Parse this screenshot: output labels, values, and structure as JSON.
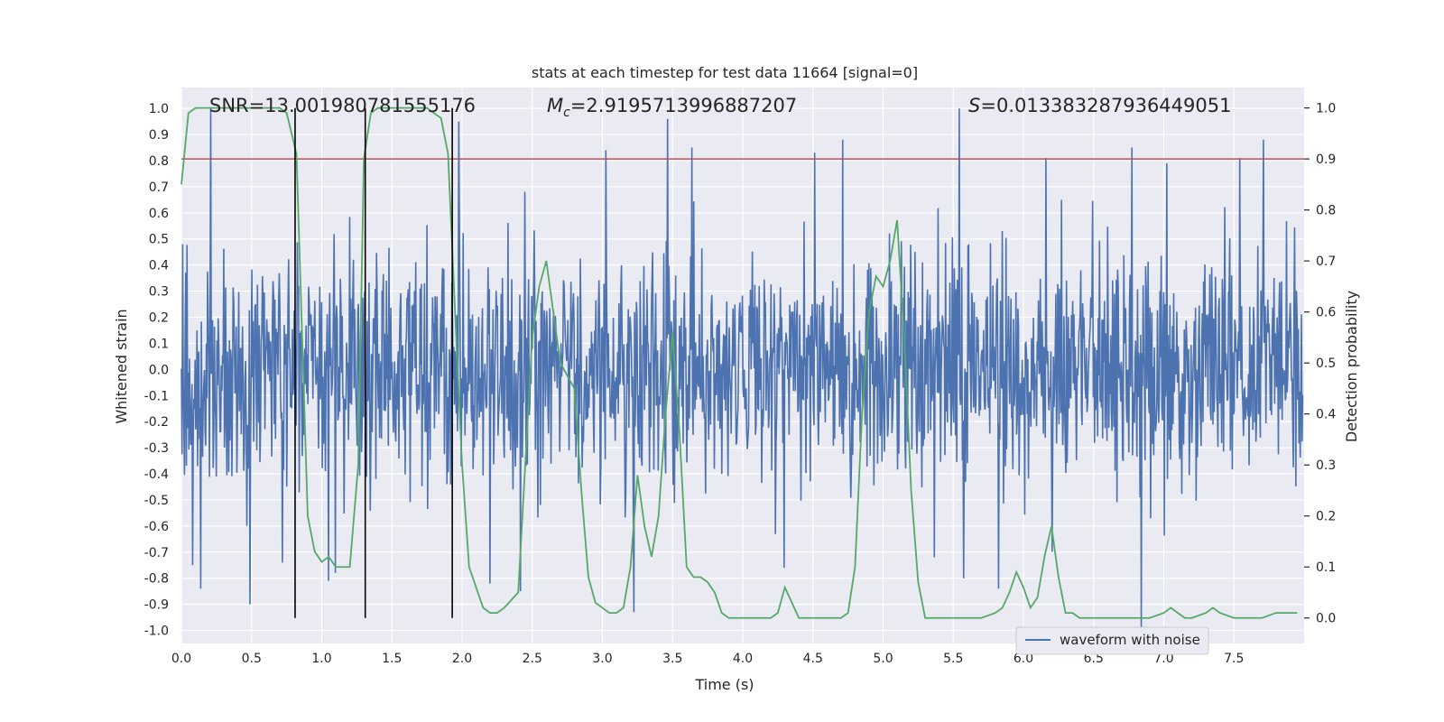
{
  "chart_data": {
    "type": "line",
    "title": "stats at each timestep for test data 11664 [signal=0]",
    "xlabel": "Time (s)",
    "ylabel": "Whitened strain",
    "ylabel_right": "Detection probability",
    "xlim": [
      0.0,
      8.0
    ],
    "ylim": [
      -1.05,
      1.08
    ],
    "ylim_right": [
      -0.05,
      1.04
    ],
    "x_ticks": [
      "0.0",
      "0.5",
      "1.0",
      "1.5",
      "2.0",
      "2.5",
      "3.0",
      "3.5",
      "4.0",
      "4.5",
      "5.0",
      "5.5",
      "6.0",
      "6.5",
      "7.0",
      "7.5"
    ],
    "y_ticks": [
      "-1.0",
      "-0.9",
      "-0.8",
      "-0.7",
      "-0.6",
      "-0.5",
      "-0.4",
      "-0.3",
      "-0.2",
      "-0.1",
      "0.0",
      "0.1",
      "0.2",
      "0.3",
      "0.4",
      "0.5",
      "0.6",
      "0.7",
      "0.8",
      "0.9",
      "1.0"
    ],
    "y_ticks_right": [
      "0.0",
      "0.1",
      "0.2",
      "0.3",
      "0.4",
      "0.5",
      "0.6",
      "0.7",
      "0.8",
      "0.9",
      "1.0"
    ],
    "grid": true,
    "annotations": {
      "snr": "SNR=13.001980781555176",
      "mc_symbol": "M",
      "mc_subscript": "c",
      "mc_value": "=2.9195713996887207",
      "s_symbol": "S",
      "s_value": "=0.013383287936449051"
    },
    "threshold_right": 0.9,
    "threshold_color": "#c44e52",
    "vertical_lines_x": [
      0.81,
      1.31,
      1.93
    ],
    "vertical_line_color": "#000000",
    "waveform": {
      "name": "waveform with noise",
      "color": "#4c72b0",
      "n_samples": 1800,
      "noise_sigma": 0.22,
      "spikes": [
        {
          "t": 0.21,
          "v": 1.0
        },
        {
          "t": 0.49,
          "v": 0.91
        },
        {
          "t": 0.08,
          "v": -0.75
        },
        {
          "t": 0.14,
          "v": -0.84
        },
        {
          "t": 0.49,
          "v": -0.9
        },
        {
          "t": 0.72,
          "v": -0.74
        },
        {
          "t": 1.98,
          "v": 0.95
        },
        {
          "t": 1.05,
          "v": -0.81
        },
        {
          "t": 1.1,
          "v": -0.78
        },
        {
          "t": 2.2,
          "v": -0.82
        },
        {
          "t": 2.42,
          "v": -0.85
        },
        {
          "t": 3.03,
          "v": 0.84
        },
        {
          "t": 3.23,
          "v": -0.93
        },
        {
          "t": 3.47,
          "v": 0.96
        },
        {
          "t": 3.64,
          "v": 0.85
        },
        {
          "t": 4.3,
          "v": -0.76
        },
        {
          "t": 4.52,
          "v": 0.83
        },
        {
          "t": 4.72,
          "v": 0.88
        },
        {
          "t": 5.55,
          "v": 1.0
        },
        {
          "t": 5.58,
          "v": -0.8
        },
        {
          "t": 5.83,
          "v": -0.84
        },
        {
          "t": 6.17,
          "v": 0.81
        },
        {
          "t": 6.78,
          "v": 0.85
        },
        {
          "t": 6.85,
          "v": -1.01
        },
        {
          "t": 7.03,
          "v": 0.79
        },
        {
          "t": 7.55,
          "v": 0.81
        },
        {
          "t": 7.72,
          "v": 0.88
        }
      ]
    },
    "probability": {
      "name": "detection probability",
      "color": "#55a868",
      "x": [
        0.0,
        0.05,
        0.1,
        0.2,
        0.3,
        0.4,
        0.5,
        0.6,
        0.7,
        0.75,
        0.82,
        0.9,
        0.95,
        1.0,
        1.05,
        1.1,
        1.15,
        1.2,
        1.26,
        1.3,
        1.35,
        1.4,
        1.45,
        1.5,
        1.6,
        1.7,
        1.75,
        1.8,
        1.85,
        1.9,
        1.95,
        2.0,
        2.05,
        2.1,
        2.15,
        2.2,
        2.25,
        2.3,
        2.4,
        2.5,
        2.55,
        2.6,
        2.65,
        2.7,
        2.8,
        2.85,
        2.9,
        2.95,
        3.0,
        3.05,
        3.1,
        3.15,
        3.2,
        3.25,
        3.3,
        3.35,
        3.4,
        3.45,
        3.5,
        3.55,
        3.6,
        3.65,
        3.7,
        3.75,
        3.8,
        3.85,
        3.9,
        3.95,
        4.0,
        4.1,
        4.2,
        4.25,
        4.3,
        4.35,
        4.4,
        4.45,
        4.5,
        4.6,
        4.7,
        4.75,
        4.8,
        4.85,
        4.9,
        4.95,
        5.0,
        5.05,
        5.1,
        5.15,
        5.2,
        5.25,
        5.3,
        5.35,
        5.4,
        5.5,
        5.6,
        5.7,
        5.8,
        5.85,
        5.9,
        5.95,
        6.0,
        6.05,
        6.1,
        6.15,
        6.2,
        6.25,
        6.3,
        6.35,
        6.4,
        6.5,
        6.6,
        6.7,
        6.8,
        6.9,
        7.0,
        7.05,
        7.1,
        7.15,
        7.2,
        7.3,
        7.35,
        7.4,
        7.5,
        7.6,
        7.7,
        7.8,
        7.9,
        7.95
      ],
      "y": [
        0.85,
        0.99,
        1.0,
        1.0,
        1.0,
        1.0,
        1.0,
        1.0,
        1.0,
        0.99,
        0.91,
        0.2,
        0.13,
        0.11,
        0.12,
        0.1,
        0.1,
        0.1,
        0.3,
        0.9,
        0.99,
        1.0,
        1.0,
        1.0,
        1.0,
        1.0,
        1.0,
        0.99,
        0.98,
        0.91,
        0.6,
        0.3,
        0.1,
        0.06,
        0.02,
        0.01,
        0.01,
        0.02,
        0.05,
        0.55,
        0.65,
        0.7,
        0.6,
        0.5,
        0.45,
        0.25,
        0.08,
        0.03,
        0.02,
        0.01,
        0.01,
        0.02,
        0.1,
        0.28,
        0.18,
        0.12,
        0.2,
        0.4,
        0.56,
        0.36,
        0.1,
        0.08,
        0.08,
        0.07,
        0.05,
        0.01,
        0.0,
        0.0,
        0.0,
        0.0,
        0.0,
        0.01,
        0.06,
        0.03,
        0.0,
        0.0,
        0.0,
        0.0,
        0.0,
        0.01,
        0.1,
        0.4,
        0.6,
        0.67,
        0.65,
        0.7,
        0.78,
        0.55,
        0.25,
        0.07,
        0.0,
        0.0,
        0.0,
        0.0,
        0.0,
        0.0,
        0.01,
        0.02,
        0.05,
        0.09,
        0.06,
        0.02,
        0.04,
        0.12,
        0.18,
        0.08,
        0.01,
        0.01,
        0.0,
        0.0,
        0.0,
        0.0,
        0.0,
        0.0,
        0.01,
        0.02,
        0.01,
        0.0,
        0.0,
        0.01,
        0.02,
        0.01,
        0.0,
        0.0,
        0.0,
        0.01,
        0.01,
        0.01
      ]
    },
    "legend": {
      "label": "waveform with noise",
      "placement": "lower-right"
    }
  },
  "colors": {
    "plot_background": "#eaeaf2",
    "grid": "#ffffff"
  }
}
